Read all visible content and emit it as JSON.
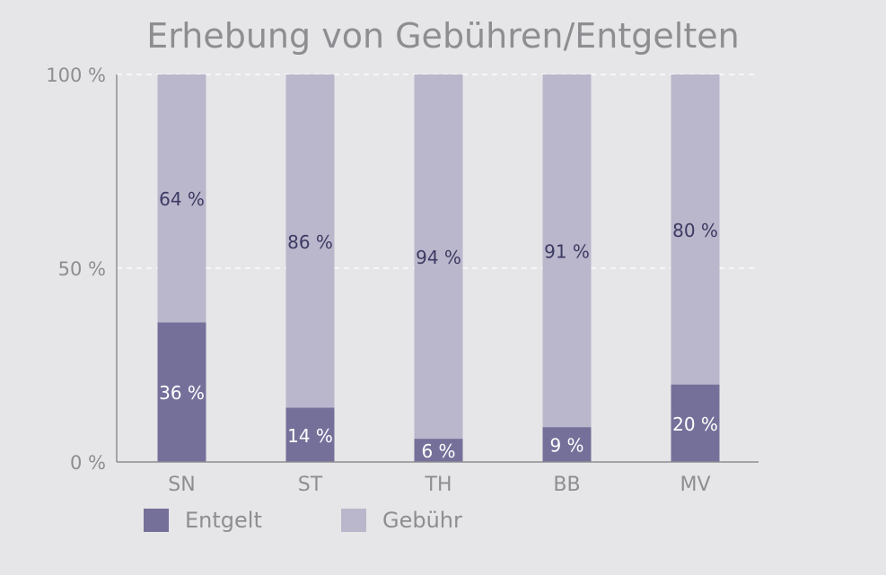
{
  "chart_data": {
    "type": "bar",
    "stacked": true,
    "title": "Erhebung von Gebühren/Entgelten",
    "categories": [
      "SN",
      "ST",
      "TH",
      "BB",
      "MV"
    ],
    "series": [
      {
        "name": "Entgelt",
        "values": [
          36,
          14,
          6,
          9,
          20
        ],
        "labels": [
          "36 %",
          "14 %",
          "6 %",
          "9 %",
          "20 %"
        ],
        "color": "#75709a"
      },
      {
        "name": "Gebühr",
        "values": [
          64,
          86,
          94,
          91,
          80
        ],
        "labels": [
          "64 %",
          "86 %",
          "94 %",
          "91 %",
          "80 %"
        ],
        "color": "#bab7cc"
      }
    ],
    "ylim": [
      0,
      100
    ],
    "yticks": [
      {
        "value": 0,
        "label": "0 %"
      },
      {
        "value": 50,
        "label": "50 %"
      },
      {
        "value": 100,
        "label": "100 %"
      }
    ],
    "grid": true,
    "legend": "bottom-left"
  }
}
